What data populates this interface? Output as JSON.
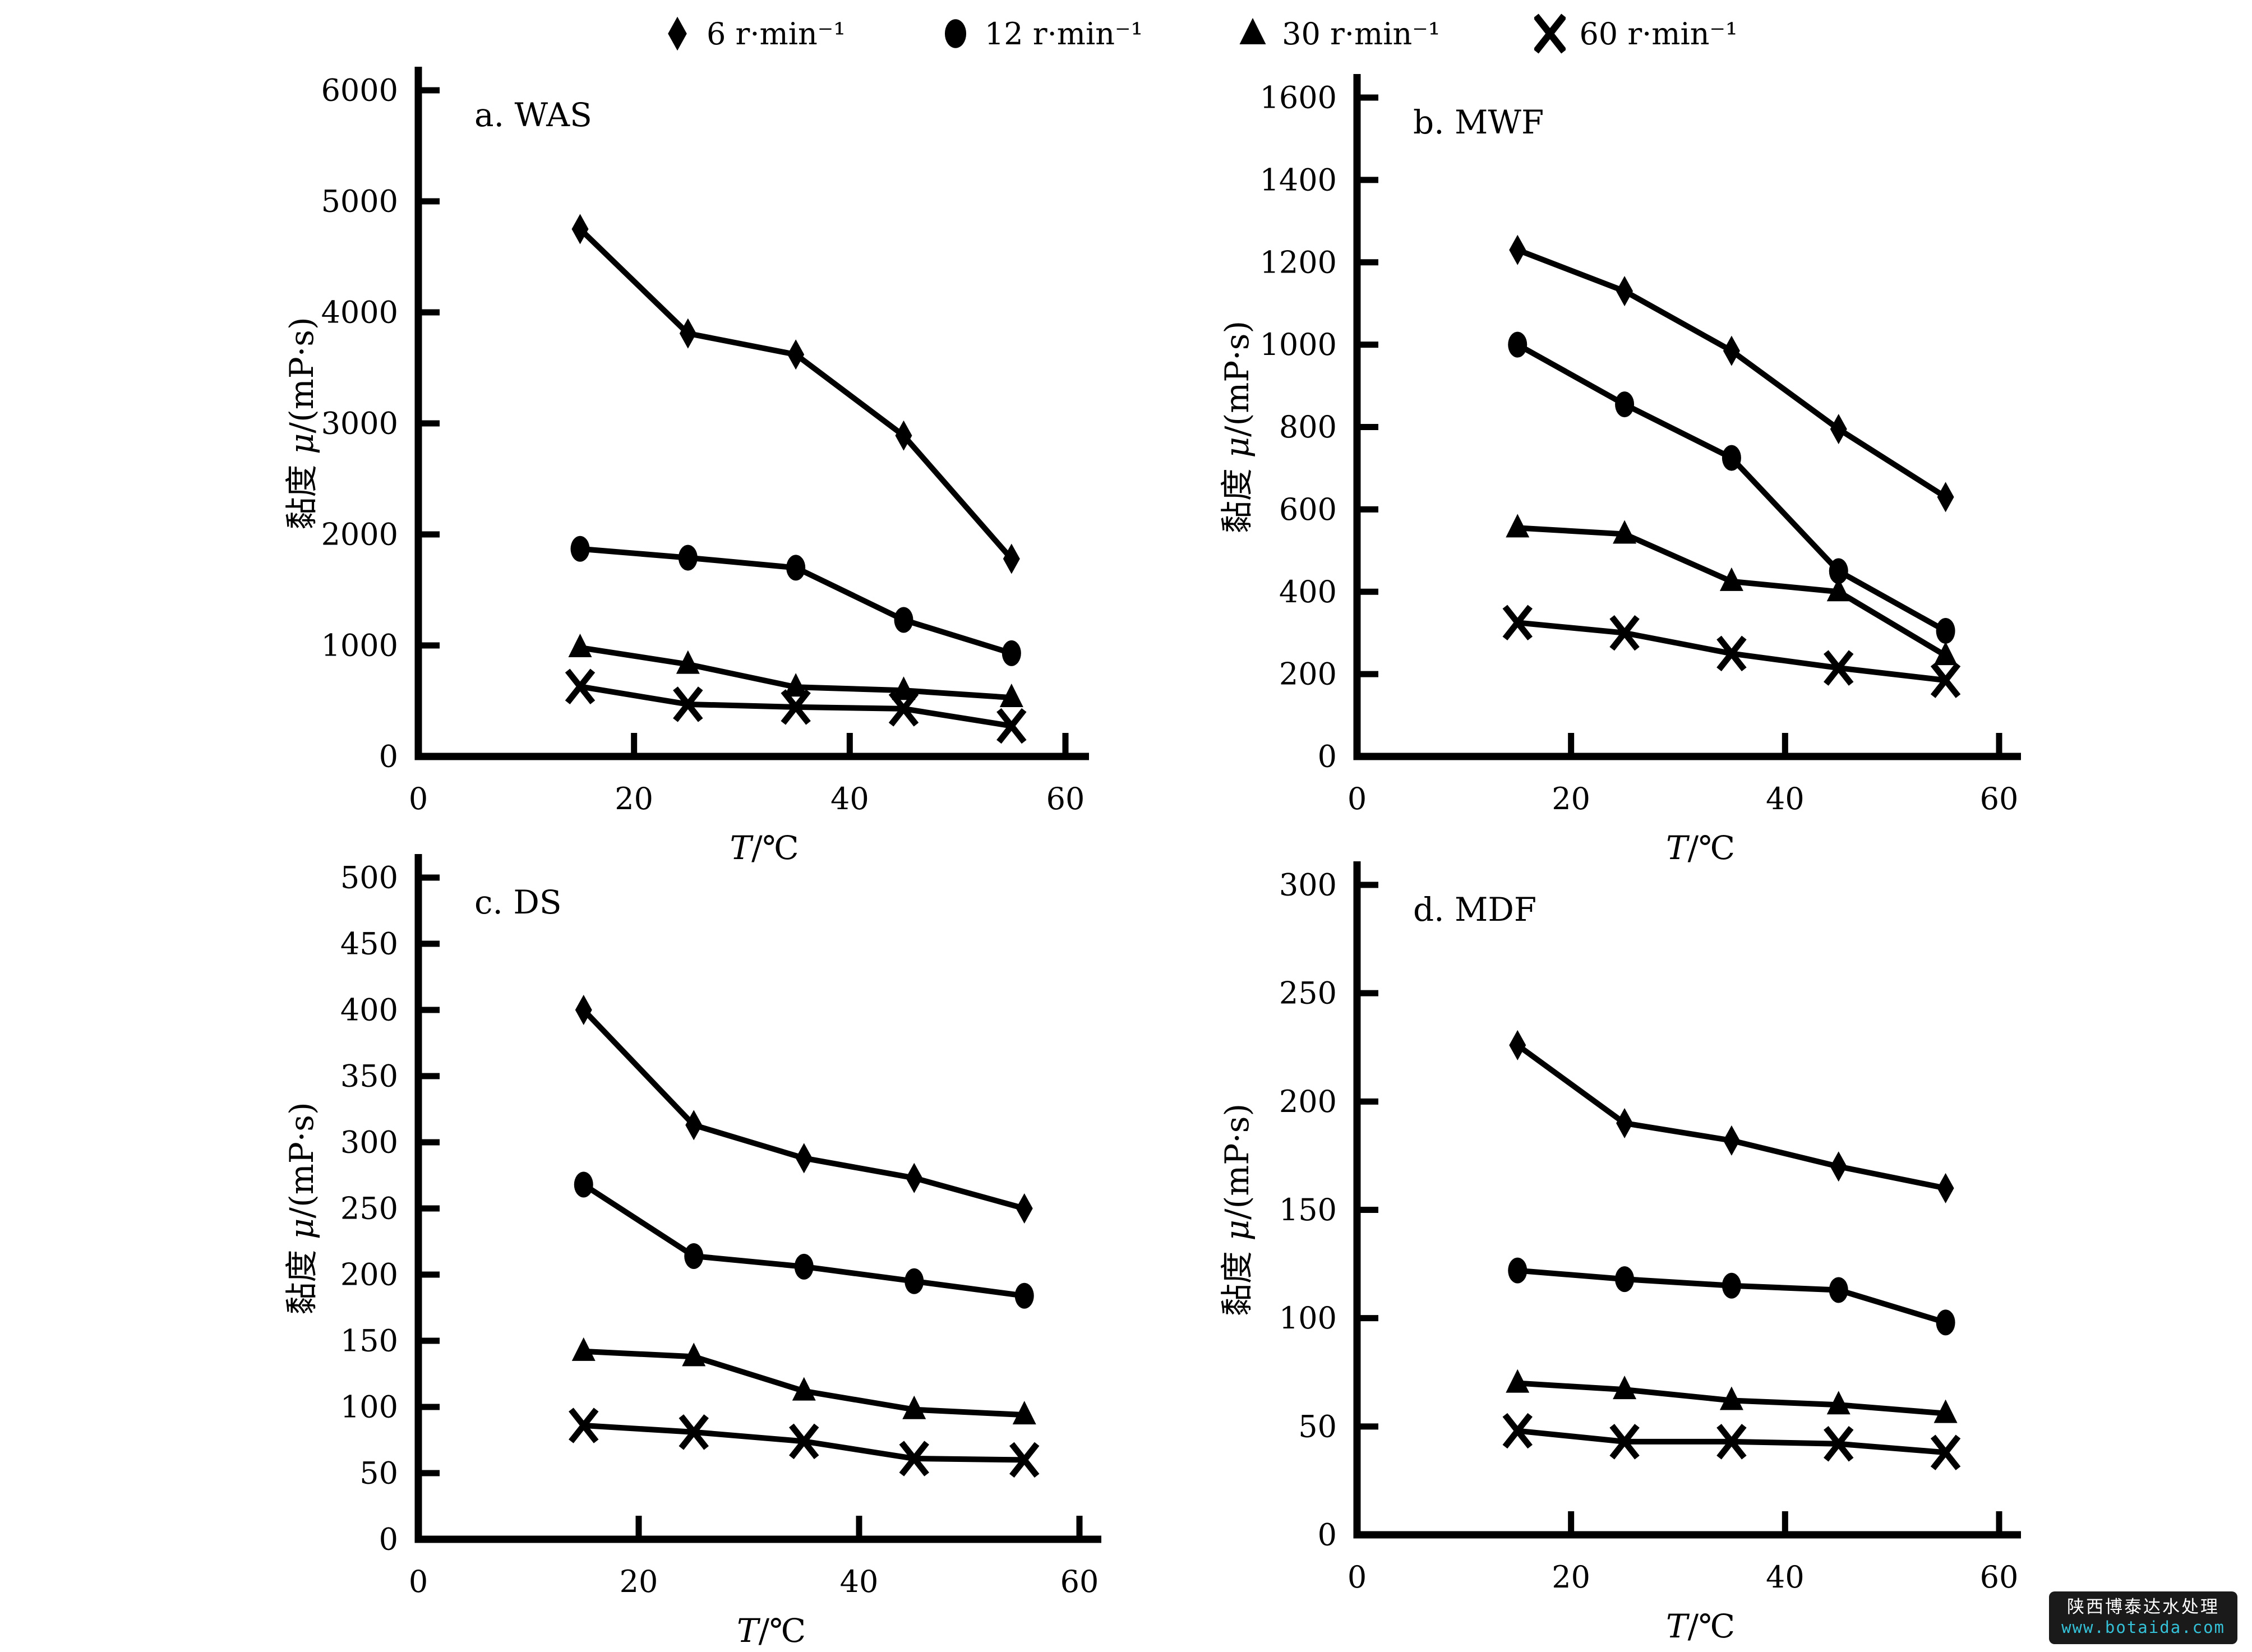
{
  "legend": {
    "items": [
      {
        "marker": "diamond",
        "label": "6 r·min⁻¹"
      },
      {
        "marker": "circle",
        "label": "12 r·min⁻¹"
      },
      {
        "marker": "triangle",
        "label": "30 r·min⁻¹"
      },
      {
        "marker": "x",
        "label": "60 r·min⁻¹"
      }
    ]
  },
  "chart_data": [
    {
      "id": "a",
      "type": "line",
      "title": "a. WAS",
      "xlabel": "T/℃",
      "ylabel": "黏度 μ/(mP·s)",
      "x_range": [
        0,
        60
      ],
      "x_ticks": [
        0,
        20,
        40,
        60
      ],
      "ylim": [
        0,
        6000
      ],
      "yticks": [
        0,
        1000,
        2000,
        3000,
        4000,
        5000,
        6000
      ],
      "x": [
        15,
        25,
        35,
        45,
        55
      ],
      "series": [
        {
          "name": "6 r·min⁻¹",
          "marker": "diamond",
          "values": [
            4750,
            3810,
            3620,
            2890,
            1780
          ]
        },
        {
          "name": "12 r·min⁻¹",
          "marker": "circle",
          "values": [
            1870,
            1790,
            1700,
            1230,
            930
          ]
        },
        {
          "name": "30 r·min⁻¹",
          "marker": "triangle",
          "values": [
            980,
            830,
            625,
            595,
            530
          ]
        },
        {
          "name": "60 r·min⁻¹",
          "marker": "x",
          "values": [
            630,
            470,
            445,
            430,
            275
          ]
        }
      ]
    },
    {
      "id": "b",
      "type": "line",
      "title": "b. MWF",
      "xlabel": "T/℃",
      "ylabel": "黏度 μ/(mP·s)",
      "x_range": [
        0,
        60
      ],
      "x_ticks": [
        0,
        20,
        40,
        60
      ],
      "ylim": [
        0,
        1600
      ],
      "yticks": [
        0,
        200,
        400,
        600,
        800,
        1000,
        1200,
        1400,
        1600
      ],
      "x": [
        15,
        25,
        35,
        45,
        55
      ],
      "series": [
        {
          "name": "6 r·min⁻¹",
          "marker": "diamond",
          "values": [
            1230,
            1130,
            985,
            795,
            630
          ]
        },
        {
          "name": "12 r·min⁻¹",
          "marker": "circle",
          "values": [
            1000,
            855,
            725,
            450,
            305
          ]
        },
        {
          "name": "30 r·min⁻¹",
          "marker": "triangle",
          "values": [
            555,
            540,
            425,
            400,
            245
          ]
        },
        {
          "name": "60 r·min⁻¹",
          "marker": "x",
          "values": [
            325,
            300,
            250,
            215,
            185
          ]
        }
      ]
    },
    {
      "id": "c",
      "type": "line",
      "title": "c. DS",
      "xlabel": "T/℃",
      "ylabel": "黏度 μ/(mP·s)",
      "x_range": [
        0,
        60
      ],
      "x_ticks": [
        0,
        20,
        40,
        60
      ],
      "ylim": [
        0,
        500
      ],
      "yticks": [
        0,
        50,
        100,
        150,
        200,
        250,
        300,
        350,
        400,
        450,
        500
      ],
      "x": [
        15,
        25,
        35,
        45,
        55
      ],
      "series": [
        {
          "name": "6 r·min⁻¹",
          "marker": "diamond",
          "values": [
            400,
            313,
            288,
            273,
            250
          ]
        },
        {
          "name": "12 r·min⁻¹",
          "marker": "circle",
          "values": [
            268,
            214,
            206,
            195,
            184
          ]
        },
        {
          "name": "30 r·min⁻¹",
          "marker": "triangle",
          "values": [
            142,
            138,
            112,
            98,
            94
          ]
        },
        {
          "name": "60 r·min⁻¹",
          "marker": "x",
          "values": [
            86,
            81,
            74,
            61,
            60
          ]
        }
      ]
    },
    {
      "id": "d",
      "type": "line",
      "title": "d. MDF",
      "xlabel": "T/℃",
      "ylabel": "黏度 μ/(mP·s)",
      "x_range": [
        0,
        60
      ],
      "x_ticks": [
        0,
        20,
        40,
        60
      ],
      "ylim": [
        0,
        300
      ],
      "yticks": [
        0,
        50,
        100,
        150,
        200,
        250,
        300
      ],
      "x": [
        15,
        25,
        35,
        45,
        55
      ],
      "series": [
        {
          "name": "6 r·min⁻¹",
          "marker": "diamond",
          "values": [
            226,
            190,
            182,
            170,
            160
          ]
        },
        {
          "name": "12 r·min⁻¹",
          "marker": "circle",
          "values": [
            122,
            118,
            115,
            113,
            98
          ]
        },
        {
          "name": "30 r·min⁻¹",
          "marker": "triangle",
          "values": [
            70,
            67,
            62,
            60,
            56
          ]
        },
        {
          "name": "60 r·min⁻¹",
          "marker": "x",
          "values": [
            48,
            43,
            43,
            42,
            38
          ]
        }
      ]
    }
  ],
  "watermark": {
    "line1": "陕西博泰达水处理",
    "line2": "www.botaida.com",
    "bg_color": "#1a1a1a",
    "line1_color": "#ffffff",
    "line2_color": "#35c2d8"
  },
  "colors": {
    "ink": "#000000",
    "background": "#ffffff"
  }
}
